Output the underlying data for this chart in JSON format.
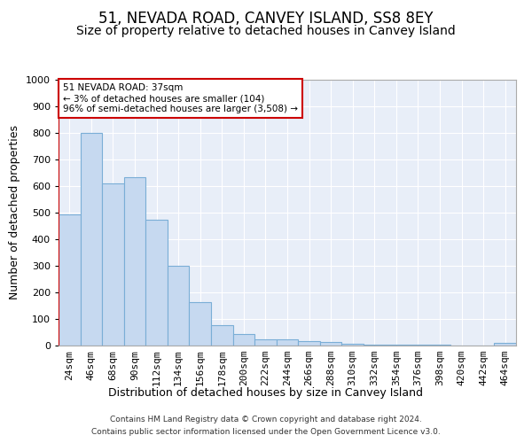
{
  "title": "51, NEVADA ROAD, CANVEY ISLAND, SS8 8EY",
  "subtitle": "Size of property relative to detached houses in Canvey Island",
  "xlabel": "Distribution of detached houses by size in Canvey Island",
  "ylabel": "Number of detached properties",
  "categories": [
    "24sqm",
    "46sqm",
    "68sqm",
    "90sqm",
    "112sqm",
    "134sqm",
    "156sqm",
    "178sqm",
    "200sqm",
    "222sqm",
    "244sqm",
    "266sqm",
    "288sqm",
    "310sqm",
    "332sqm",
    "354sqm",
    "376sqm",
    "398sqm",
    "420sqm",
    "442sqm",
    "464sqm"
  ],
  "values": [
    495,
    800,
    610,
    635,
    475,
    300,
    162,
    78,
    45,
    25,
    22,
    18,
    12,
    6,
    4,
    4,
    3,
    2,
    1,
    1,
    10
  ],
  "bar_color": "#c6d9f0",
  "bar_edge_color": "#7aaed6",
  "marker_color": "#cc0000",
  "annotation_text": "51 NEVADA ROAD: 37sqm\n← 3% of detached houses are smaller (104)\n96% of semi-detached houses are larger (3,508) →",
  "annotation_box_color": "#ffffff",
  "annotation_box_edge": "#cc0000",
  "ylim": [
    0,
    1000
  ],
  "yticks": [
    0,
    100,
    200,
    300,
    400,
    500,
    600,
    700,
    800,
    900,
    1000
  ],
  "footer_line1": "Contains HM Land Registry data © Crown copyright and database right 2024.",
  "footer_line2": "Contains public sector information licensed under the Open Government Licence v3.0.",
  "bg_color": "#e8eef8",
  "grid_color": "#ffffff",
  "title_fontsize": 12,
  "subtitle_fontsize": 10,
  "axis_label_fontsize": 9,
  "tick_fontsize": 8,
  "footer_fontsize": 6.5
}
